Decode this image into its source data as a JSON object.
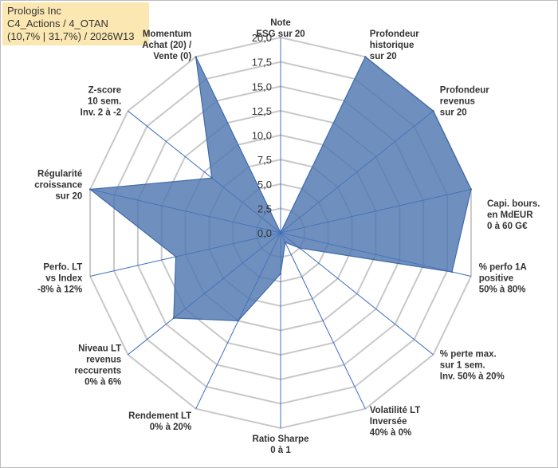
{
  "header": {
    "line1": "Prologis Inc",
    "line2": "C4_Actions / 4_OTAN",
    "line3": "(10,7% | 31,7%) / 2026W13"
  },
  "colors": {
    "fill": "#4f78b0",
    "fill_opacity": "0.82",
    "stroke": "#3f69a8",
    "spoke": "#4472c4",
    "grid": "#c8c8c8",
    "header_bg": "#fbe7b2"
  },
  "chart_data": {
    "type": "radar",
    "rmax": 20,
    "tick_values": [
      0,
      2.5,
      5,
      7.5,
      10,
      12.5,
      15,
      17.5,
      20
    ],
    "tick_labels": [
      "0,0",
      "2,5",
      "5,0",
      "7,5",
      "10,0",
      "12,5",
      "15,0",
      "17,5",
      "20,0"
    ],
    "axes": [
      {
        "label": [
          "Note",
          "ESG sur 20"
        ],
        "value": 0
      },
      {
        "label": [
          "Profondeur",
          "historique",
          "sur 20"
        ],
        "value": 20
      },
      {
        "label": [
          "Profondeur",
          "revenus",
          "sur 20"
        ],
        "value": 20
      },
      {
        "label": [
          "Capi. bours.",
          "en MdEUR",
          "0 à 60 G€"
        ],
        "value": 20
      },
      {
        "label": [
          "% perfo 1A",
          "positive",
          "50% à 80%"
        ],
        "value": 18
      },
      {
        "label": [
          "% perte max.",
          "sur 1 sem.",
          "Inv. 50% à 20%"
        ],
        "value": 2.5
      },
      {
        "label": [
          "Volatilité LT",
          "Inversée",
          "40% à 0%"
        ],
        "value": 1.1
      },
      {
        "label": [
          "Ratio Sharpe",
          "0 à 1"
        ],
        "value": 4.2
      },
      {
        "label": [
          "Rendement LT",
          "0% à 20%"
        ],
        "value": 10
      },
      {
        "label": [
          "Niveau LT",
          "revenus",
          "reccurents",
          "0% à 6%"
        ],
        "value": 14
      },
      {
        "label": [
          "Perfo. LT",
          "vs Index",
          "-8% à 12%"
        ],
        "value": 11
      },
      {
        "label": [
          "Régularité",
          "croissance",
          "sur 20"
        ],
        "value": 20
      },
      {
        "label": [
          "Z-score",
          "10 sem.",
          "Inv. 2 à -2"
        ],
        "value": 9
      },
      {
        "label": [
          "Momentum",
          "Achat (20) /",
          "Vente (0)"
        ],
        "value": 20
      }
    ]
  }
}
